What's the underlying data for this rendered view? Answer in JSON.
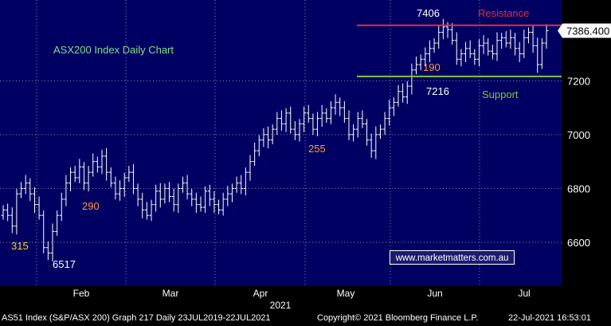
{
  "chart_data": {
    "type": "ohlc",
    "title": "ASX200 Index Daily Chart",
    "x_ticks": [
      "Feb",
      "Mar",
      "Apr",
      "May",
      "Jun",
      "Jul"
    ],
    "year_label": "2021",
    "y_ticks": [
      6600,
      6800,
      7000,
      7200
    ],
    "ylim": [
      6440,
      7500
    ],
    "last_price": "7386.400",
    "levels": [
      {
        "name": "Resistance",
        "value": 7406,
        "color": "#e0303a"
      },
      {
        "name": "Support",
        "value": 7216,
        "color": "#7ec83a"
      }
    ],
    "annotations": [
      {
        "text": "7406",
        "color": "#ffffff"
      },
      {
        "text": "190",
        "color": "#ff9a3c"
      },
      {
        "text": "7216",
        "color": "#ffffff"
      },
      {
        "text": "255",
        "color": "#ff9a3c"
      },
      {
        "text": "290",
        "color": "#ff9a3c"
      },
      {
        "text": "315",
        "color": "#ffd21e"
      },
      {
        "text": "6517",
        "color": "#ffffff"
      }
    ],
    "closes": [
      6720,
      6700,
      6660,
      6780,
      6800,
      6820,
      6780,
      6740,
      6700,
      6580,
      6560,
      6640,
      6700,
      6760,
      6820,
      6860,
      6840,
      6880,
      6820,
      6860,
      6900,
      6880,
      6920,
      6860,
      6820,
      6780,
      6800,
      6840,
      6860,
      6800,
      6760,
      6720,
      6700,
      6740,
      6790,
      6760,
      6800,
      6770,
      6740,
      6800,
      6820,
      6780,
      6760,
      6740,
      6730,
      6790,
      6760,
      6740,
      6720,
      6760,
      6780,
      6800,
      6820,
      6800,
      6860,
      6900,
      6940,
      6980,
      7000,
      6980,
      7020,
      7060,
      7040,
      7080,
      7020,
      7000,
      7040,
      7080,
      7060,
      7020,
      7060,
      7080,
      7060,
      7100,
      7120,
      7100,
      7060,
      7000,
      7020,
      7060,
      7040,
      6980,
      6940,
      7000,
      7020,
      7060,
      7100,
      7120,
      7160,
      7140,
      7180,
      7240,
      7260,
      7280,
      7300,
      7320,
      7340,
      7380,
      7400,
      7390,
      7350,
      7280,
      7300,
      7320,
      7300,
      7280,
      7330,
      7340,
      7310,
      7300,
      7350,
      7360,
      7340,
      7360,
      7320,
      7300,
      7360,
      7380,
      7330,
      7260,
      7340,
      7386
    ],
    "colors": {
      "background": "#000063",
      "grid": "#8a8aa8",
      "candle": "#ffffff",
      "text": "#ffffff",
      "title": "#7fe08a"
    }
  },
  "watermark": "www.marketmatters.com.au",
  "footer": {
    "left": "AS51 Index (S&P/ASX 200) Graph 217  Daily 23JUL2019-22JUL2021",
    "center": "Copyright© 2021 Bloomberg Finance L.P.",
    "right": "22-Jul-2021 16:53:01"
  }
}
